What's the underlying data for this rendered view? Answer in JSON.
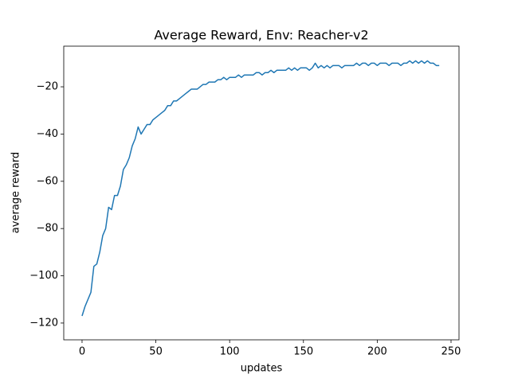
{
  "chart_data": {
    "type": "line",
    "title": "Average Reward, Env: Reacher-v2",
    "xlabel": "updates",
    "ylabel": "average reward",
    "x": [
      0,
      2,
      4,
      6,
      8,
      10,
      12,
      14,
      16,
      18,
      20,
      22,
      24,
      26,
      28,
      30,
      32,
      34,
      36,
      38,
      40,
      42,
      44,
      46,
      48,
      50,
      52,
      54,
      56,
      58,
      60,
      62,
      64,
      66,
      68,
      70,
      72,
      74,
      76,
      78,
      80,
      82,
      84,
      86,
      88,
      90,
      92,
      94,
      96,
      98,
      100,
      102,
      104,
      106,
      108,
      110,
      112,
      114,
      116,
      118,
      120,
      122,
      124,
      126,
      128,
      130,
      132,
      134,
      136,
      138,
      140,
      142,
      144,
      146,
      148,
      150,
      152,
      154,
      156,
      158,
      160,
      162,
      164,
      166,
      168,
      170,
      172,
      174,
      176,
      178,
      180,
      182,
      184,
      186,
      188,
      190,
      192,
      194,
      196,
      198,
      200,
      202,
      204,
      206,
      208,
      210,
      212,
      214,
      216,
      218,
      220,
      222,
      224,
      226,
      228,
      230,
      232,
      234,
      236,
      238,
      240,
      242
    ],
    "series": [
      {
        "color": "#1f77b4",
        "values": [
          -117,
          -113,
          -110,
          -107,
          -96,
          -95,
          -90,
          -83,
          -80,
          -71,
          -72,
          -66,
          -66,
          -62,
          -55,
          -53,
          -50,
          -45,
          -42,
          -37,
          -40,
          -38,
          -36,
          -36,
          -34,
          -33,
          -32,
          -31,
          -30,
          -28,
          -28,
          -26,
          -26,
          -25,
          -24,
          -23,
          -22,
          -21,
          -21,
          -21,
          -20,
          -19,
          -19,
          -18,
          -18,
          -18,
          -17,
          -17,
          -16,
          -17,
          -16,
          -16,
          -16,
          -15,
          -16,
          -15,
          -15,
          -15,
          -15,
          -14,
          -14,
          -15,
          -14,
          -14,
          -13,
          -14,
          -13,
          -13,
          -13,
          -13,
          -12,
          -13,
          -12,
          -13,
          -12,
          -12,
          -12,
          -13,
          -12,
          -10,
          -12,
          -11,
          -12,
          -11,
          -12,
          -11,
          -11,
          -11,
          -12,
          -11,
          -11,
          -11,
          -11,
          -10,
          -11,
          -10,
          -10,
          -11,
          -10,
          -10,
          -11,
          -10,
          -10,
          -10,
          -11,
          -10,
          -10,
          -10,
          -11,
          -10,
          -10,
          -9,
          -10,
          -9,
          -10,
          -9,
          -10,
          -9,
          -10,
          -10,
          -11,
          -11
        ]
      }
    ],
    "xlim": [
      -12.4,
      255.4
    ],
    "ylim": [
      -127.1,
      -2.8
    ],
    "xticks": [
      0,
      50,
      100,
      150,
      200,
      250
    ],
    "yticks": [
      {
        "value": -120,
        "label": "−120"
      },
      {
        "value": -100,
        "label": "−100"
      },
      {
        "value": -80,
        "label": "−80"
      },
      {
        "value": -60,
        "label": "−60"
      },
      {
        "value": -40,
        "label": "−40"
      },
      {
        "value": -20,
        "label": "−20"
      }
    ]
  }
}
